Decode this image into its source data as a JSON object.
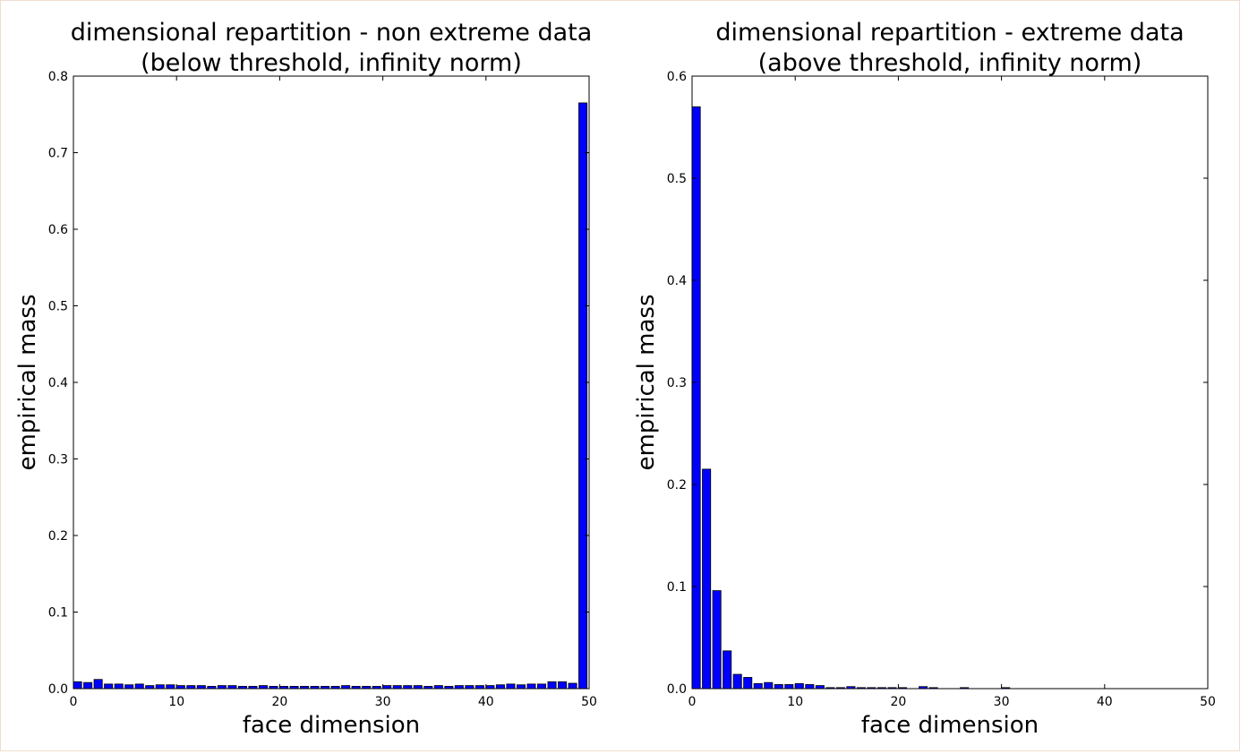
{
  "chart_data": [
    {
      "type": "bar",
      "title": "dimensional repartition - non extreme data",
      "subtitle": "(below threshold, infinity norm)",
      "xlabel": "face dimension",
      "ylabel": "empirical mass",
      "xlim": [
        0,
        50
      ],
      "ylim": [
        0,
        0.8
      ],
      "xticks": [
        0,
        10,
        20,
        30,
        40,
        50
      ],
      "xtick_labels": [
        "0",
        "10",
        "20",
        "30",
        "40",
        "50"
      ],
      "yticks": [
        0.0,
        0.1,
        0.2,
        0.3,
        0.4,
        0.5,
        0.6,
        0.7,
        0.8
      ],
      "ytick_labels": [
        "0.0",
        "0.1",
        "0.2",
        "0.3",
        "0.4",
        "0.5",
        "0.6",
        "0.7",
        "0.8"
      ],
      "grid": false,
      "bar_color": "#0000ff",
      "x": [
        0,
        1,
        2,
        3,
        4,
        5,
        6,
        7,
        8,
        9,
        10,
        11,
        12,
        13,
        14,
        15,
        16,
        17,
        18,
        19,
        20,
        21,
        22,
        23,
        24,
        25,
        26,
        27,
        28,
        29,
        30,
        31,
        32,
        33,
        34,
        35,
        36,
        37,
        38,
        39,
        40,
        41,
        42,
        43,
        44,
        45,
        46,
        47,
        48,
        49
      ],
      "values": [
        0.009,
        0.008,
        0.012,
        0.006,
        0.006,
        0.005,
        0.006,
        0.004,
        0.005,
        0.005,
        0.004,
        0.004,
        0.004,
        0.003,
        0.004,
        0.004,
        0.003,
        0.003,
        0.004,
        0.003,
        0.003,
        0.003,
        0.003,
        0.003,
        0.003,
        0.003,
        0.004,
        0.003,
        0.003,
        0.003,
        0.004,
        0.004,
        0.004,
        0.004,
        0.003,
        0.004,
        0.003,
        0.004,
        0.004,
        0.004,
        0.004,
        0.005,
        0.006,
        0.005,
        0.006,
        0.006,
        0.009,
        0.009,
        0.007,
        0.765
      ]
    },
    {
      "type": "bar",
      "title": "dimensional repartition - extreme data",
      "subtitle": "(above threshold, infinity norm)",
      "xlabel": "face dimension",
      "ylabel": "empirical mass",
      "xlim": [
        0,
        50
      ],
      "ylim": [
        0,
        0.6
      ],
      "xticks": [
        0,
        10,
        20,
        30,
        40,
        50
      ],
      "xtick_labels": [
        "0",
        "10",
        "20",
        "30",
        "40",
        "50"
      ],
      "yticks": [
        0.0,
        0.1,
        0.2,
        0.3,
        0.4,
        0.5,
        0.6
      ],
      "ytick_labels": [
        "0.0",
        "0.1",
        "0.2",
        "0.3",
        "0.4",
        "0.5",
        "0.6"
      ],
      "grid": false,
      "bar_color": "#0000ff",
      "x": [
        0,
        1,
        2,
        3,
        4,
        5,
        6,
        7,
        8,
        9,
        10,
        11,
        12,
        13,
        14,
        15,
        16,
        17,
        18,
        19,
        20,
        21,
        22,
        23,
        24,
        25,
        26,
        27,
        28,
        29,
        30,
        31,
        32,
        33,
        34,
        35,
        36,
        37,
        38,
        39,
        40,
        41,
        42,
        43,
        44,
        45,
        46,
        47,
        48,
        49
      ],
      "values": [
        0.57,
        0.215,
        0.096,
        0.037,
        0.014,
        0.011,
        0.005,
        0.006,
        0.004,
        0.004,
        0.005,
        0.004,
        0.003,
        0.001,
        0.001,
        0.002,
        0.001,
        0.001,
        0.001,
        0.001,
        0.001,
        0.0,
        0.002,
        0.001,
        0.0,
        0.0,
        0.001,
        0.0,
        0.0,
        0.0,
        0.001,
        0.0,
        0.0,
        0.0,
        0.0,
        0.0,
        0.0,
        0.0,
        0.0,
        0.0,
        0.0,
        0.0,
        0.0,
        0.0,
        0.0,
        0.0,
        0.0,
        0.0,
        0.0,
        0.0
      ]
    }
  ]
}
